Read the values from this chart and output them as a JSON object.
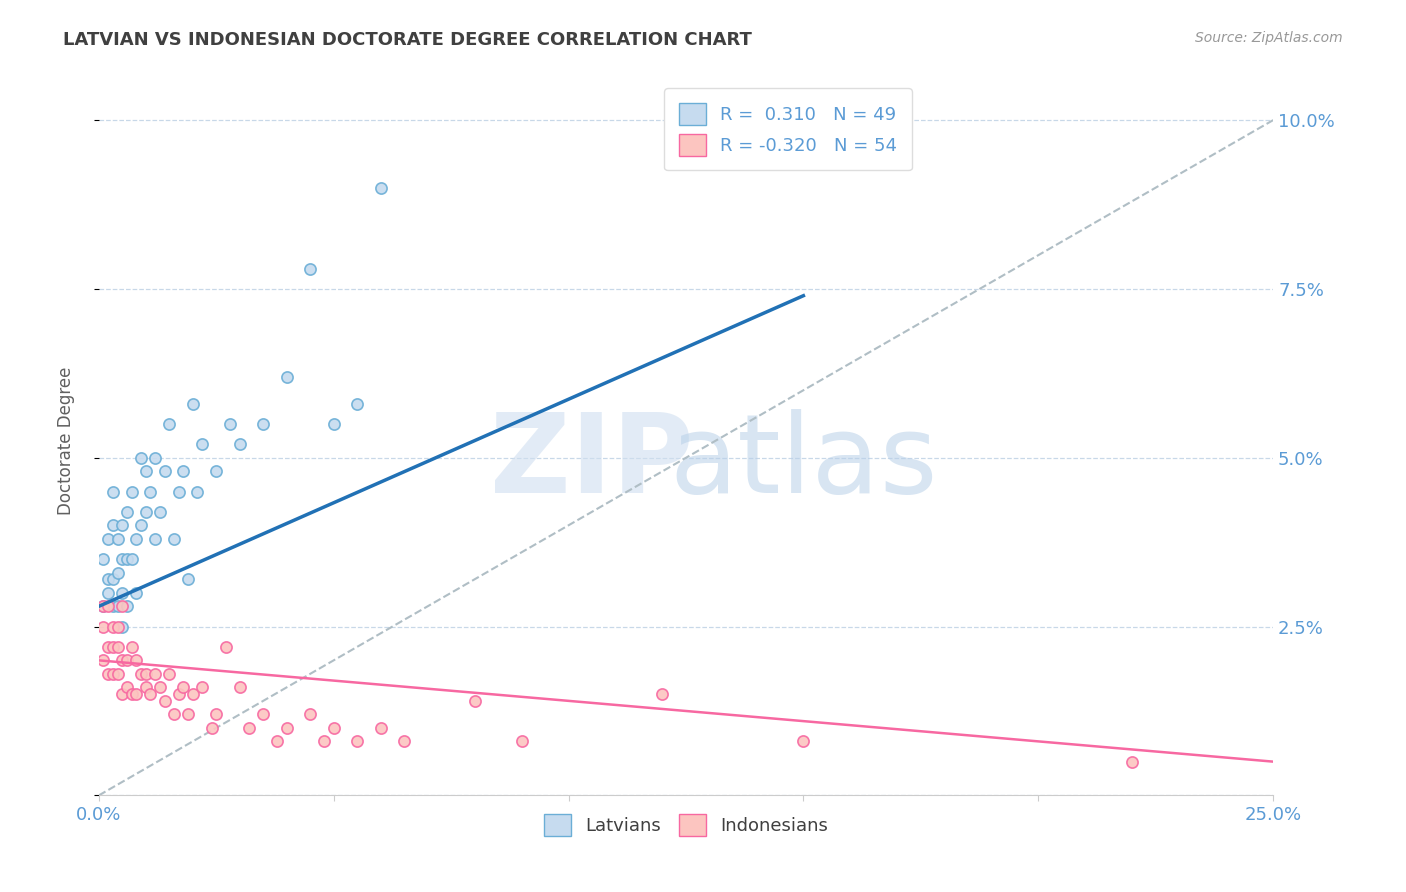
{
  "title": "LATVIAN VS INDONESIAN DOCTORATE DEGREE CORRELATION CHART",
  "source": "Source: ZipAtlas.com",
  "ylabel": "Doctorate Degree",
  "xlim": [
    0.0,
    0.25
  ],
  "ylim": [
    0.0,
    0.105
  ],
  "xtick_positions": [
    0.0,
    0.05,
    0.1,
    0.15,
    0.2,
    0.25
  ],
  "xtick_labels": [
    "0.0%",
    "",
    "",
    "",
    "",
    "25.0%"
  ],
  "yticks": [
    0.0,
    0.025,
    0.05,
    0.075,
    0.1
  ],
  "ytick_labels": [
    "",
    "2.5%",
    "5.0%",
    "7.5%",
    "10.0%"
  ],
  "blue_dot_color": "#6baed6",
  "blue_dot_fill": "#c6dbef",
  "pink_dot_color": "#f768a1",
  "pink_dot_fill": "#fcc5c0",
  "trend_blue": "#2171b5",
  "trend_pink": "#f768a1",
  "ref_line_color": "#b0bec5",
  "grid_color": "#c8d8e8",
  "label_color": "#5b9bd5",
  "title_color": "#404040",
  "background": "#ffffff",
  "R_latvian": 0.31,
  "N_latvian": 49,
  "R_indonesian": -0.32,
  "N_indonesian": 54,
  "legend_latvians": "Latvians",
  "legend_indonesians": "Indonesians",
  "blue_trend_x0": 0.0,
  "blue_trend_y0": 0.028,
  "blue_trend_x1": 0.15,
  "blue_trend_y1": 0.074,
  "pink_trend_x0": 0.0,
  "pink_trend_y0": 0.02,
  "pink_trend_x1": 0.25,
  "pink_trend_y1": 0.005,
  "latvian_x": [
    0.001,
    0.001,
    0.002,
    0.002,
    0.002,
    0.003,
    0.003,
    0.003,
    0.003,
    0.004,
    0.004,
    0.004,
    0.005,
    0.005,
    0.005,
    0.005,
    0.006,
    0.006,
    0.006,
    0.007,
    0.007,
    0.008,
    0.008,
    0.009,
    0.009,
    0.01,
    0.01,
    0.011,
    0.012,
    0.012,
    0.013,
    0.014,
    0.015,
    0.016,
    0.017,
    0.018,
    0.019,
    0.02,
    0.021,
    0.022,
    0.025,
    0.028,
    0.03,
    0.035,
    0.04,
    0.045,
    0.05,
    0.055,
    0.06
  ],
  "latvian_y": [
    0.035,
    0.028,
    0.032,
    0.038,
    0.03,
    0.04,
    0.032,
    0.028,
    0.045,
    0.033,
    0.028,
    0.038,
    0.04,
    0.035,
    0.03,
    0.025,
    0.042,
    0.035,
    0.028,
    0.045,
    0.035,
    0.038,
    0.03,
    0.04,
    0.05,
    0.042,
    0.048,
    0.045,
    0.05,
    0.038,
    0.042,
    0.048,
    0.055,
    0.038,
    0.045,
    0.048,
    0.032,
    0.058,
    0.045,
    0.052,
    0.048,
    0.055,
    0.052,
    0.055,
    0.062,
    0.078,
    0.055,
    0.058,
    0.09
  ],
  "indonesian_x": [
    0.001,
    0.001,
    0.001,
    0.002,
    0.002,
    0.002,
    0.003,
    0.003,
    0.003,
    0.004,
    0.004,
    0.004,
    0.005,
    0.005,
    0.005,
    0.006,
    0.006,
    0.007,
    0.007,
    0.008,
    0.008,
    0.009,
    0.01,
    0.01,
    0.011,
    0.012,
    0.013,
    0.014,
    0.015,
    0.016,
    0.017,
    0.018,
    0.019,
    0.02,
    0.022,
    0.024,
    0.025,
    0.027,
    0.03,
    0.032,
    0.035,
    0.038,
    0.04,
    0.045,
    0.048,
    0.05,
    0.055,
    0.06,
    0.065,
    0.08,
    0.09,
    0.12,
    0.15,
    0.22
  ],
  "indonesian_y": [
    0.025,
    0.02,
    0.028,
    0.028,
    0.022,
    0.018,
    0.025,
    0.022,
    0.018,
    0.025,
    0.018,
    0.022,
    0.028,
    0.02,
    0.015,
    0.02,
    0.016,
    0.022,
    0.015,
    0.02,
    0.015,
    0.018,
    0.018,
    0.016,
    0.015,
    0.018,
    0.016,
    0.014,
    0.018,
    0.012,
    0.015,
    0.016,
    0.012,
    0.015,
    0.016,
    0.01,
    0.012,
    0.022,
    0.016,
    0.01,
    0.012,
    0.008,
    0.01,
    0.012,
    0.008,
    0.01,
    0.008,
    0.01,
    0.008,
    0.014,
    0.008,
    0.015,
    0.008,
    0.005
  ]
}
